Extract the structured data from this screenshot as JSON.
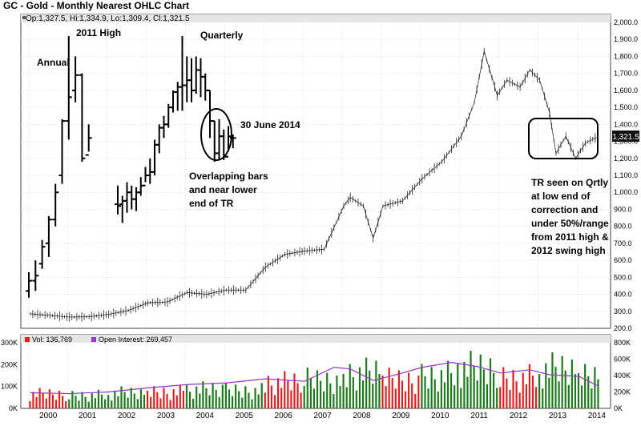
{
  "chart_data": {
    "type": "ohlc",
    "title": "GC - Gold - Monthly Nearest OHLC Chart",
    "ohlc_readout": "Op:1,327.5, Hi:1,334.9, Lo:1,309.4, Cl:1,321.5",
    "last_price_label": "1,321.5",
    "price_axis": {
      "ticks": [
        "2,000.0",
        "1,900.0",
        "1,800.0",
        "1,700.0",
        "1,600.0",
        "1,500.0",
        "1,400.0",
        "1,300.0",
        "1,200.0",
        "1,100.0",
        "1,000.0",
        "900.0",
        "800.0",
        "700.0",
        "600.0",
        "500.0",
        "400.0",
        "300.0",
        "200.0"
      ],
      "ylim": [
        200,
        2000
      ]
    },
    "x_axis": {
      "ticks": [
        "2000",
        "2001",
        "2002",
        "2003",
        "2004",
        "2005",
        "2006",
        "2007",
        "2008",
        "2009",
        "2010",
        "2011",
        "2012",
        "2013",
        "2014"
      ]
    },
    "monthly_close_path": [
      {
        "x": "2000-01",
        "y": 285
      },
      {
        "x": "2000-07",
        "y": 276
      },
      {
        "x": "2001-01",
        "y": 266
      },
      {
        "x": "2001-07",
        "y": 268
      },
      {
        "x": "2002-01",
        "y": 282
      },
      {
        "x": "2002-07",
        "y": 305
      },
      {
        "x": "2003-01",
        "y": 350
      },
      {
        "x": "2003-07",
        "y": 355
      },
      {
        "x": "2004-01",
        "y": 410
      },
      {
        "x": "2004-07",
        "y": 400
      },
      {
        "x": "2005-01",
        "y": 425
      },
      {
        "x": "2005-07",
        "y": 425
      },
      {
        "x": "2006-01",
        "y": 560
      },
      {
        "x": "2006-07",
        "y": 635
      },
      {
        "x": "2007-01",
        "y": 655
      },
      {
        "x": "2007-07",
        "y": 665
      },
      {
        "x": "2008-01",
        "y": 920
      },
      {
        "x": "2008-03",
        "y": 970
      },
      {
        "x": "2008-07",
        "y": 920
      },
      {
        "x": "2008-10",
        "y": 730
      },
      {
        "x": "2009-01",
        "y": 920
      },
      {
        "x": "2009-07",
        "y": 950
      },
      {
        "x": "2010-01",
        "y": 1080
      },
      {
        "x": "2010-07",
        "y": 1180
      },
      {
        "x": "2011-01",
        "y": 1330
      },
      {
        "x": "2011-05",
        "y": 1530
      },
      {
        "x": "2011-08",
        "y": 1830
      },
      {
        "x": "2011-12",
        "y": 1570
      },
      {
        "x": "2012-03",
        "y": 1660
      },
      {
        "x": "2012-07",
        "y": 1620
      },
      {
        "x": "2012-10",
        "y": 1720
      },
      {
        "x": "2013-01",
        "y": 1660
      },
      {
        "x": "2013-04",
        "y": 1470
      },
      {
        "x": "2013-06",
        "y": 1230
      },
      {
        "x": "2013-09",
        "y": 1330
      },
      {
        "x": "2013-12",
        "y": 1200
      },
      {
        "x": "2014-03",
        "y": 1290
      },
      {
        "x": "2014-06",
        "y": 1320
      },
      {
        "x": "2014-07",
        "y": 1321.5
      }
    ],
    "annual_bars": [
      {
        "high": 530,
        "low": 380,
        "open": 420,
        "close": 480
      },
      {
        "high": 600,
        "low": 420,
        "open": 480,
        "close": 510
      },
      {
        "high": 720,
        "low": 550,
        "open": 580,
        "close": 680
      },
      {
        "high": 860,
        "low": 620,
        "open": 700,
        "close": 840
      },
      {
        "high": 1050,
        "low": 800,
        "open": 840,
        "close": 1000
      },
      {
        "high": 1430,
        "low": 1050,
        "open": 1100,
        "close": 1420
      },
      {
        "high": 1920,
        "low": 1310,
        "open": 1420,
        "close": 1560
      },
      {
        "high": 1800,
        "low": 1530,
        "open": 1600,
        "close": 1690
      },
      {
        "high": 1700,
        "low": 1180,
        "open": 1690,
        "close": 1200
      },
      {
        "high": 1400,
        "low": 1240,
        "open": 1220,
        "close": 1320
      }
    ],
    "quarterly_bars": [
      {
        "high": 1040,
        "low": 870,
        "open": 930,
        "close": 920
      },
      {
        "high": 980,
        "low": 820,
        "open": 930,
        "close": 950
      },
      {
        "high": 1060,
        "low": 880,
        "open": 950,
        "close": 1000
      },
      {
        "high": 1040,
        "low": 900,
        "open": 1000,
        "close": 960
      },
      {
        "high": 1030,
        "low": 890,
        "open": 960,
        "close": 1000
      },
      {
        "high": 1090,
        "low": 980,
        "open": 1000,
        "close": 1040
      },
      {
        "high": 1150,
        "low": 1060,
        "open": 1040,
        "close": 1100
      },
      {
        "high": 1200,
        "low": 1050,
        "open": 1100,
        "close": 1120
      },
      {
        "high": 1310,
        "low": 1100,
        "open": 1120,
        "close": 1280
      },
      {
        "high": 1400,
        "low": 1230,
        "open": 1280,
        "close": 1380
      },
      {
        "high": 1450,
        "low": 1320,
        "open": 1380,
        "close": 1400
      },
      {
        "high": 1520,
        "low": 1380,
        "open": 1400,
        "close": 1500
      },
      {
        "high": 1600,
        "low": 1470,
        "open": 1500,
        "close": 1590
      },
      {
        "high": 1650,
        "low": 1480,
        "open": 1590,
        "close": 1620
      },
      {
        "high": 1920,
        "low": 1480,
        "open": 1620,
        "close": 1630
      },
      {
        "high": 1800,
        "low": 1530,
        "open": 1630,
        "close": 1660
      },
      {
        "high": 1790,
        "low": 1530,
        "open": 1660,
        "close": 1600
      },
      {
        "high": 1800,
        "low": 1580,
        "open": 1600,
        "close": 1720
      },
      {
        "high": 1790,
        "low": 1560,
        "open": 1720,
        "close": 1680
      },
      {
        "high": 1700,
        "low": 1540,
        "open": 1680,
        "close": 1600
      },
      {
        "high": 1600,
        "low": 1320,
        "open": 1600,
        "close": 1420
      },
      {
        "high": 1420,
        "low": 1180,
        "open": 1420,
        "close": 1230
      },
      {
        "high": 1430,
        "low": 1190,
        "open": 1230,
        "close": 1330
      },
      {
        "high": 1370,
        "low": 1190,
        "open": 1330,
        "close": 1210
      },
      {
        "high": 1390,
        "low": 1240,
        "open": 1210,
        "close": 1330
      },
      {
        "high": 1340,
        "low": 1260,
        "open": 1320,
        "close": 1320
      }
    ],
    "annotations": [
      "Annual",
      "2011 High",
      "Quarterly",
      "30 June 2014",
      "Overlapping bars",
      "and near lower",
      "end of TR",
      "TR seen on Qrtly",
      "at low end of",
      "correction and",
      "under 50%/range",
      "from 2011 high &",
      "2012 swing high"
    ],
    "lower_panel": {
      "vol_readout": "Vol: 136,769",
      "oi_readout": "Open Interest: 269,457",
      "left_ticks": [
        "300K",
        "200K",
        "100K",
        "0K"
      ],
      "right_ticks": [
        "800K",
        "600K",
        "400K",
        "200K",
        "0K"
      ],
      "vol_ylim": [
        0,
        300000
      ],
      "oi_ylim": [
        0,
        800000
      ],
      "colors": {
        "up": "#1f7a1f",
        "down": "#e02020",
        "open_interest": "#9933cc"
      },
      "volume_yearly": [
        {
          "year": "2000",
          "vol": 60000
        },
        {
          "year": "2001",
          "vol": 55000
        },
        {
          "year": "2002",
          "vol": 65000
        },
        {
          "year": "2003",
          "vol": 70000
        },
        {
          "year": "2004",
          "vol": 80000
        },
        {
          "year": "2005",
          "vol": 75000
        },
        {
          "year": "2006",
          "vol": 110000
        },
        {
          "year": "2007",
          "vol": 120000
        },
        {
          "year": "2008",
          "vol": 150000
        },
        {
          "year": "2009",
          "vol": 120000
        },
        {
          "year": "2010",
          "vol": 140000
        },
        {
          "year": "2011",
          "vol": 170000
        },
        {
          "year": "2012",
          "vol": 130000
        },
        {
          "year": "2013",
          "vol": 165000
        },
        {
          "year": "2014",
          "vol": 140000
        }
      ],
      "oi_path": [
        {
          "x": "2000-01",
          "y": 190000
        },
        {
          "x": "2001-01",
          "y": 180000
        },
        {
          "x": "2002-01",
          "y": 200000
        },
        {
          "x": "2003-01",
          "y": 250000
        },
        {
          "x": "2004-01",
          "y": 290000
        },
        {
          "x": "2005-01",
          "y": 310000
        },
        {
          "x": "2006-01",
          "y": 360000
        },
        {
          "x": "2007-01",
          "y": 330000
        },
        {
          "x": "2007-10",
          "y": 500000
        },
        {
          "x": "2008-03",
          "y": 480000
        },
        {
          "x": "2008-10",
          "y": 340000
        },
        {
          "x": "2009-06",
          "y": 420000
        },
        {
          "x": "2010-01",
          "y": 500000
        },
        {
          "x": "2010-10",
          "y": 560000
        },
        {
          "x": "2011-06",
          "y": 510000
        },
        {
          "x": "2012-01",
          "y": 430000
        },
        {
          "x": "2012-10",
          "y": 470000
        },
        {
          "x": "2013-04",
          "y": 410000
        },
        {
          "x": "2014-01",
          "y": 390000
        },
        {
          "x": "2014-07",
          "y": 270000
        }
      ]
    }
  }
}
